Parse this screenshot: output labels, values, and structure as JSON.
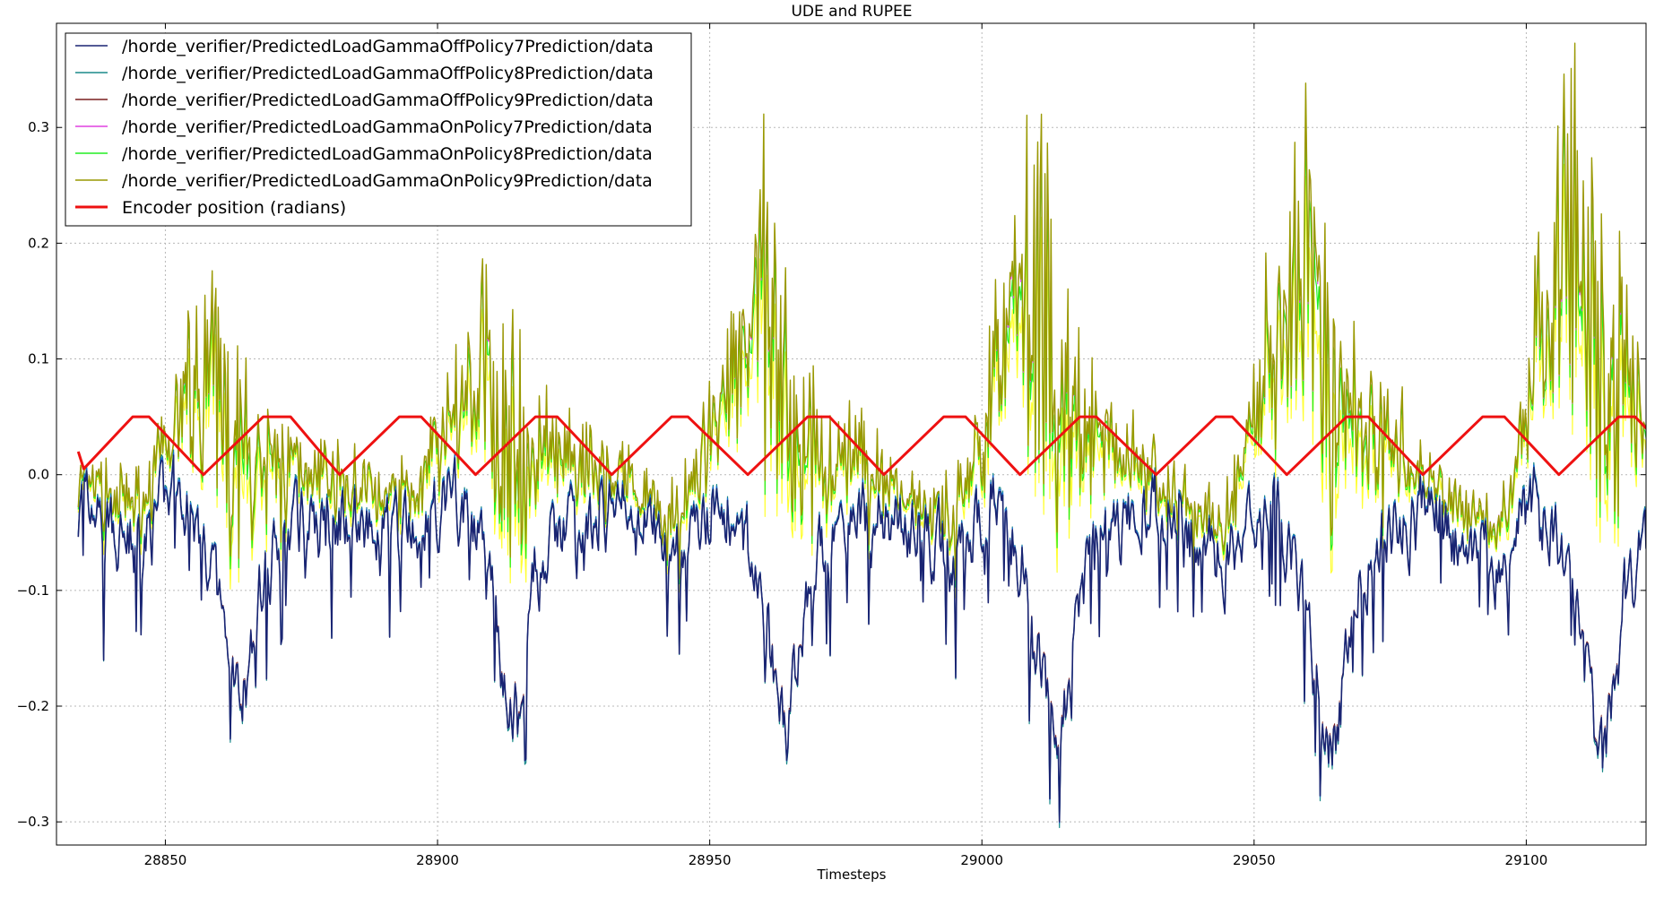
{
  "chart_data": {
    "type": "line",
    "title": "UDE and RUPEE",
    "xlabel": "Timesteps",
    "ylabel": "",
    "xlim": [
      28830,
      29122
    ],
    "ylim": [
      -0.32,
      0.39
    ],
    "xticks": [
      28850,
      28900,
      28950,
      29000,
      29050,
      29100
    ],
    "xtick_labels": [
      "28850",
      "28900",
      "28950",
      "29000",
      "29050",
      "29100"
    ],
    "yticks": [
      -0.3,
      -0.2,
      -0.1,
      0.0,
      0.1,
      0.2,
      0.3
    ],
    "ytick_labels": [
      "−0.3",
      "−0.2",
      "−0.1",
      "0.0",
      "0.1",
      "0.2",
      "0.3"
    ],
    "grid": true,
    "legend_position": "top-left",
    "period": 50,
    "encoder_keypoints": {
      "x": [
        28834,
        28835,
        28844,
        28847,
        28857,
        28868,
        28873,
        28882,
        28893,
        28897,
        28907,
        28918,
        28922,
        28932,
        28943,
        28946,
        28957,
        28968,
        28972,
        28982,
        28993,
        28997,
        29007,
        29018,
        29021,
        29032,
        29043,
        29046,
        29056,
        29067,
        29071,
        29081,
        29092,
        29096,
        29106,
        29117,
        29120,
        29122
      ],
      "y": [
        0.02,
        0.005,
        0.05,
        0.05,
        0.0,
        0.05,
        0.05,
        0.0,
        0.05,
        0.05,
        0.0,
        0.05,
        0.05,
        0.0,
        0.05,
        0.05,
        0.0,
        0.05,
        0.05,
        0.0,
        0.05,
        0.05,
        0.0,
        0.05,
        0.05,
        0.0,
        0.05,
        0.05,
        0.0,
        0.05,
        0.05,
        0.0,
        0.05,
        0.05,
        0.0,
        0.05,
        0.05,
        0.04
      ]
    },
    "envelope": {
      "phase": [
        0,
        3,
        6,
        9,
        12,
        15,
        17,
        19,
        21,
        23,
        25,
        27,
        29,
        31,
        33,
        35,
        38,
        41,
        44,
        47,
        50
      ],
      "high_peak": [
        0.0,
        -0.01,
        -0.02,
        -0.03,
        -0.02,
        0.02,
        0.06,
        0.11,
        0.16,
        0.2,
        0.24,
        0.25,
        0.21,
        0.15,
        0.12,
        0.1,
        0.06,
        0.04,
        0.03,
        0.01,
        0.0
      ],
      "low_peak": [
        -0.03,
        -0.04,
        -0.05,
        -0.06,
        -0.07,
        -0.05,
        -0.03,
        -0.02,
        -0.03,
        -0.05,
        -0.08,
        -0.13,
        -0.19,
        -0.23,
        -0.18,
        -0.1,
        -0.07,
        -0.05,
        -0.04,
        -0.04,
        -0.03
      ]
    },
    "series": [
      {
        "name": "/horde_verifier/PredictedLoadGammaOffPolicy7Prediction/data",
        "color": "#1a2472"
      },
      {
        "name": "/horde_verifier/PredictedLoadGammaOffPolicy8Prediction/data",
        "color": "#1b8a8a"
      },
      {
        "name": "/horde_verifier/PredictedLoadGammaOffPolicy9Prediction/data",
        "color": "#7a1f1f"
      },
      {
        "name": "/horde_verifier/PredictedLoadGammaOnPolicy7Prediction/data",
        "color": "#e040e0"
      },
      {
        "name": "/horde_verifier/PredictedLoadGammaOnPolicy8Prediction/data",
        "color": "#22ee22"
      },
      {
        "name": "/horde_verifier/PredictedLoadGammaOnPolicy9Prediction/data",
        "color": "#999900"
      },
      {
        "name": "Encoder position (radians)",
        "color": "#ee1111"
      }
    ],
    "extra_series_colors": [
      "#ffff33",
      "#1166dd"
    ]
  }
}
